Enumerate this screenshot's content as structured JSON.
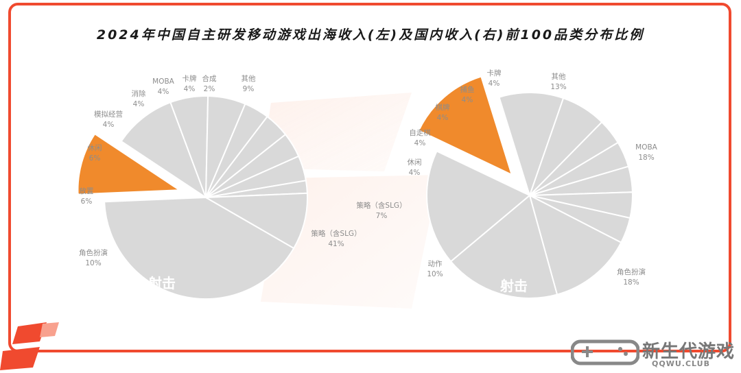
{
  "title": "2024年中国自主研发移动游戏出海收入(左)及国内收入(右)前100品类分布比例",
  "colors": {
    "frame": "#f04a2f",
    "slice": "#d9d9d9",
    "highlight": "#f08a2c",
    "slice_border": "#ffffff",
    "label": "#8c8c8c"
  },
  "watermark": {
    "name": "新生代游戏",
    "site": "QQWU.CLUB",
    "icon": "gamepad-icon"
  },
  "chart_data": [
    {
      "type": "pie",
      "title": "出海收入(左)",
      "highlight": "射击",
      "slices": [
        {
          "label": "策略（含SLG）",
          "value": 41
        },
        {
          "label": "射击",
          "value": 10
        },
        {
          "label": "角色扮演",
          "value": 10
        },
        {
          "label": "放置",
          "value": 6
        },
        {
          "label": "休闲",
          "value": 6
        },
        {
          "label": "模拟经营",
          "value": 4
        },
        {
          "label": "消除",
          "value": 4
        },
        {
          "label": "MOBA",
          "value": 4
        },
        {
          "label": "卡牌",
          "value": 4
        },
        {
          "label": "合成",
          "value": 2
        },
        {
          "label": "其他",
          "value": 9
        }
      ]
    },
    {
      "type": "pie",
      "title": "国内收入(右)",
      "highlight": "射击",
      "slices": [
        {
          "label": "角色扮演",
          "value": 18
        },
        {
          "label": "射击",
          "value": 13
        },
        {
          "label": "动作",
          "value": 10
        },
        {
          "label": "策略（含SLG）",
          "value": 7
        },
        {
          "label": "休闲",
          "value": 4
        },
        {
          "label": "自走棋",
          "value": 4
        },
        {
          "label": "棋牌",
          "value": 4
        },
        {
          "label": "捕鱼",
          "value": 4
        },
        {
          "label": "卡牌",
          "value": 4
        },
        {
          "label": "其他",
          "value": 13
        },
        {
          "label": "MOBA",
          "value": 18
        }
      ]
    }
  ]
}
